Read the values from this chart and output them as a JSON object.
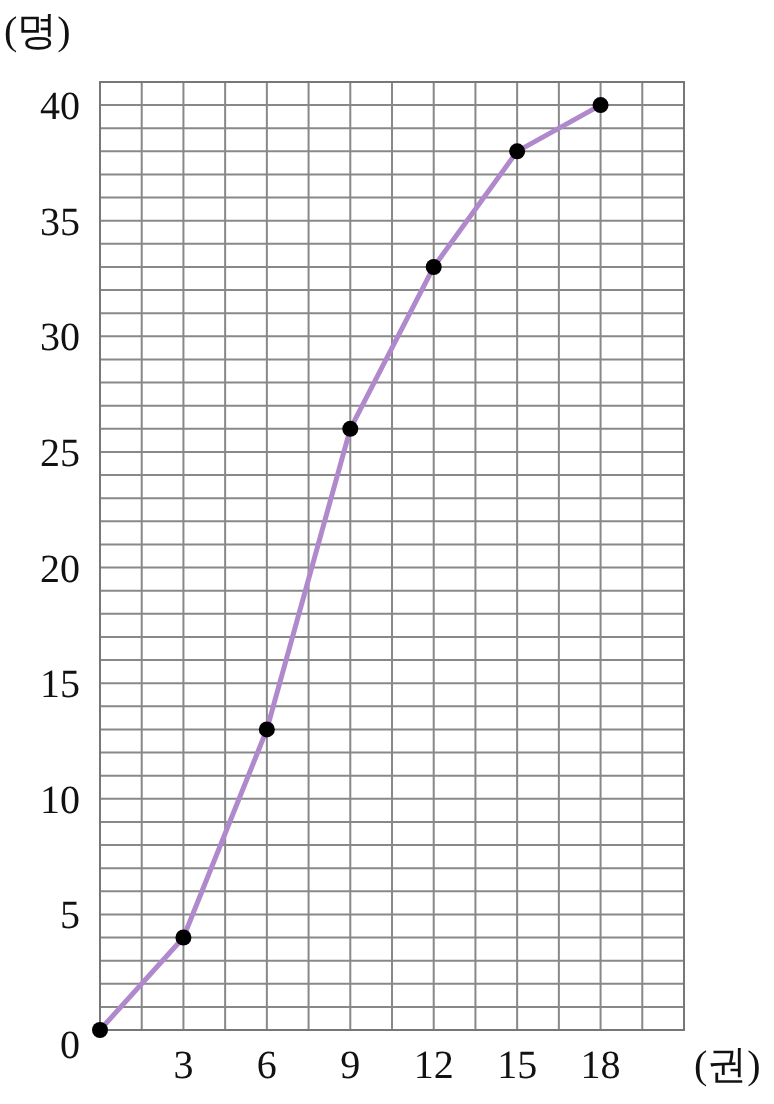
{
  "chart_data": {
    "type": "line",
    "xlabel": "(권)",
    "ylabel": "(명)",
    "x": [
      0,
      3,
      6,
      9,
      12,
      15,
      18
    ],
    "series": [
      {
        "color": "#b088cc",
        "values": [
          0,
          4,
          13,
          26,
          33,
          38,
          40
        ]
      }
    ],
    "marker": "circle",
    "line_style": "solid",
    "grid": true,
    "xlim": [
      0,
      21
    ],
    "ylim": [
      0,
      41
    ],
    "xticks": [
      {
        "value": 0,
        "label": null
      },
      {
        "value": 1.5,
        "label": null
      },
      3,
      {
        "value": 4.5,
        "label": null
      },
      6,
      {
        "value": 7.5,
        "label": null
      },
      9,
      {
        "value": 10.5,
        "label": null
      },
      12,
      {
        "value": 13.5,
        "label": null
      },
      15,
      {
        "value": 16.5,
        "label": null
      },
      18,
      {
        "value": 19.5,
        "label": null
      },
      {
        "value": 21,
        "label": null
      }
    ],
    "yticks": [
      0,
      {
        "value": 1,
        "label": null
      },
      {
        "value": 2,
        "label": null
      },
      {
        "value": 3,
        "label": null
      },
      {
        "value": 4,
        "label": null
      },
      5,
      {
        "value": 6,
        "label": null
      },
      {
        "value": 7,
        "label": null
      },
      {
        "value": 8,
        "label": null
      },
      {
        "value": 9,
        "label": null
      },
      10,
      {
        "value": 11,
        "label": null
      },
      {
        "value": 12,
        "label": null
      },
      {
        "value": 13,
        "label": null
      },
      {
        "value": 14,
        "label": null
      },
      15,
      {
        "value": 16,
        "label": null
      },
      {
        "value": 17,
        "label": null
      },
      {
        "value": 18,
        "label": null
      },
      {
        "value": 19,
        "label": null
      },
      20,
      {
        "value": 21,
        "label": null
      },
      {
        "value": 22,
        "label": null
      },
      {
        "value": 23,
        "label": null
      },
      {
        "value": 24,
        "label": null
      },
      25,
      {
        "value": 26,
        "label": null
      },
      {
        "value": 27,
        "label": null
      },
      {
        "value": 28,
        "label": null
      },
      {
        "value": 29,
        "label": null
      },
      30,
      {
        "value": 31,
        "label": null
      },
      {
        "value": 32,
        "label": null
      },
      {
        "value": 33,
        "label": null
      },
      {
        "value": 34,
        "label": null
      },
      35,
      {
        "value": 36,
        "label": null
      },
      {
        "value": 37,
        "label": null
      },
      {
        "value": 38,
        "label": null
      },
      {
        "value": 39,
        "label": null
      },
      40,
      {
        "value": 41,
        "label": null
      }
    ]
  }
}
